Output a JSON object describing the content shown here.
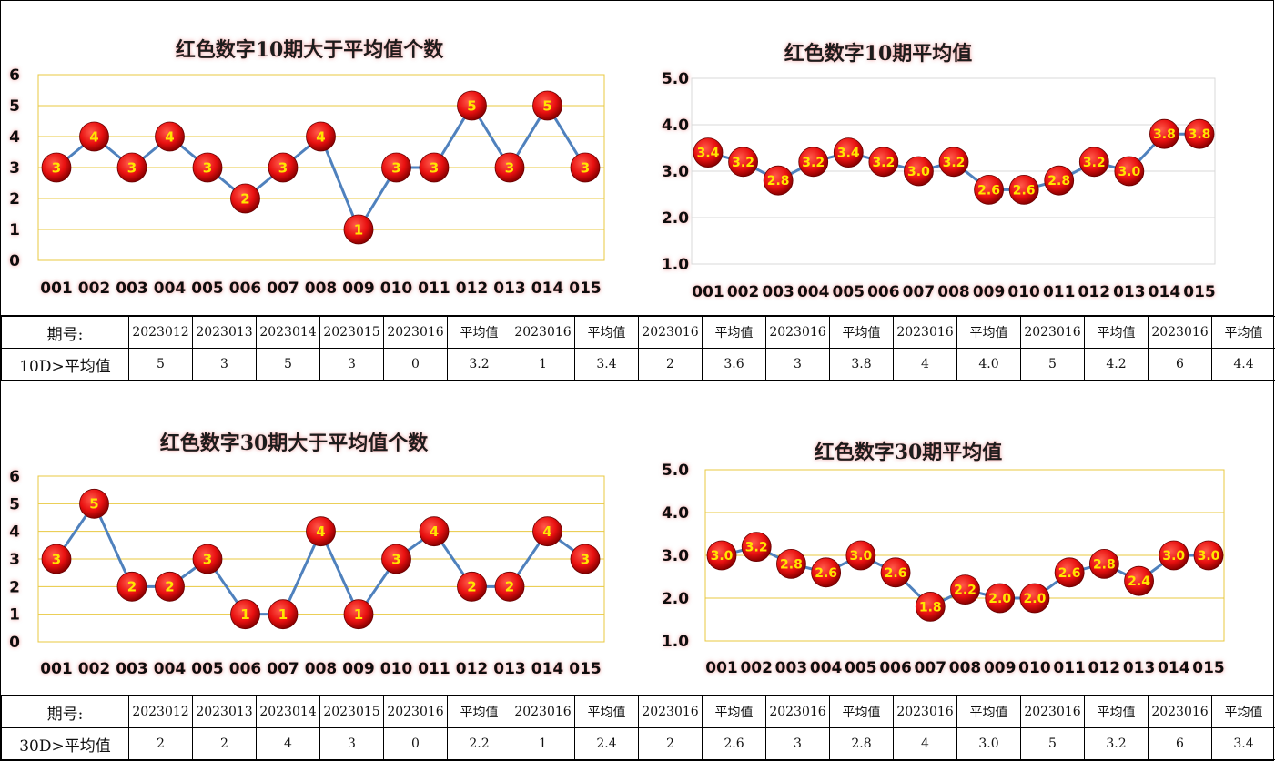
{
  "charts": [
    {
      "id": "top-left",
      "type": "line",
      "title": "红色数字10期大于平均值个数",
      "categories": [
        "001",
        "002",
        "003",
        "004",
        "005",
        "006",
        "007",
        "008",
        "009",
        "010",
        "011",
        "012",
        "013",
        "014",
        "015"
      ],
      "values": [
        3,
        4,
        3,
        4,
        3,
        2,
        3,
        4,
        1,
        3,
        3,
        5,
        3,
        5,
        3
      ],
      "ylim": [
        0,
        6
      ],
      "yticks": [
        "0",
        "1",
        "2",
        "3",
        "4",
        "5",
        "6"
      ],
      "grid": "gold",
      "label_format": "int"
    },
    {
      "id": "top-right",
      "type": "line",
      "title": "红色数字10期平均值",
      "categories": [
        "001",
        "002",
        "003",
        "004",
        "005",
        "006",
        "007",
        "008",
        "009",
        "010",
        "011",
        "012",
        "013",
        "014",
        "015"
      ],
      "values": [
        3.4,
        3.2,
        2.8,
        3.2,
        3.4,
        3.2,
        3.0,
        3.2,
        2.6,
        2.6,
        2.8,
        3.2,
        3.0,
        3.8,
        3.8
      ],
      "ylim": [
        1.0,
        5.0
      ],
      "yticks": [
        "1.0",
        "2.0",
        "3.0",
        "4.0",
        "5.0"
      ],
      "grid": "gray",
      "label_format": "fixed1"
    },
    {
      "id": "bottom-left",
      "type": "line",
      "title": "红色数字30期大于平均值个数",
      "categories": [
        "001",
        "002",
        "003",
        "004",
        "005",
        "006",
        "007",
        "008",
        "009",
        "010",
        "011",
        "012",
        "013",
        "014",
        "015"
      ],
      "values": [
        3,
        5,
        2,
        2,
        3,
        1,
        1,
        4,
        1,
        3,
        4,
        2,
        2,
        4,
        3
      ],
      "ylim": [
        0,
        6
      ],
      "yticks": [
        "0",
        "1",
        "2",
        "3",
        "4",
        "5",
        "6"
      ],
      "grid": "gold",
      "label_format": "int"
    },
    {
      "id": "bottom-right",
      "type": "line",
      "title": "红色数字30期平均值",
      "categories": [
        "001",
        "002",
        "003",
        "004",
        "005",
        "006",
        "007",
        "008",
        "009",
        "010",
        "011",
        "012",
        "013",
        "014",
        "015"
      ],
      "values": [
        3.0,
        3.2,
        2.8,
        2.6,
        3.0,
        2.6,
        1.8,
        2.2,
        2.0,
        2.0,
        2.6,
        2.8,
        2.4,
        3.0,
        3.0
      ],
      "ylim": [
        1.0,
        5.0
      ],
      "yticks": [
        "1.0",
        "2.0",
        "3.0",
        "4.0",
        "5.0"
      ],
      "grid": "gold",
      "label_format": "fixed1"
    }
  ],
  "tables": [
    {
      "id": "table-10d",
      "header": [
        "期号:",
        "2023012",
        "2023013",
        "2023014",
        "2023015",
        "2023016",
        "平均值",
        "2023016",
        "平均值",
        "2023016",
        "平均值",
        "2023016",
        "平均值",
        "2023016",
        "平均值",
        "2023016",
        "平均值",
        "2023016",
        "平均值"
      ],
      "row": [
        "10D>平均值",
        "5",
        "3",
        "5",
        "3",
        "0",
        "3.2",
        "1",
        "3.4",
        "2",
        "3.6",
        "3",
        "3.8",
        "4",
        "4.0",
        "5",
        "4.2",
        "6",
        "4.4"
      ]
    },
    {
      "id": "table-30d",
      "header": [
        "期号:",
        "2023012",
        "2023013",
        "2023014",
        "2023015",
        "2023016",
        "平均值",
        "2023016",
        "平均值",
        "2023016",
        "平均值",
        "2023016",
        "平均值",
        "2023016",
        "平均值",
        "2023016",
        "平均值",
        "2023016",
        "平均值"
      ],
      "row": [
        "30D>平均值",
        "2",
        "2",
        "4",
        "3",
        "0",
        "2.2",
        "1",
        "2.4",
        "2",
        "2.6",
        "3",
        "2.8",
        "4",
        "3.0",
        "5",
        "3.2",
        "6",
        "3.4"
      ]
    }
  ],
  "colors": {
    "line": "#4f81bd",
    "marker": "#e81010",
    "marker_dark": "#8a0000",
    "label": "#ffe600",
    "grid_gold": "#e8c840",
    "grid_gray": "#d9d9d9"
  }
}
